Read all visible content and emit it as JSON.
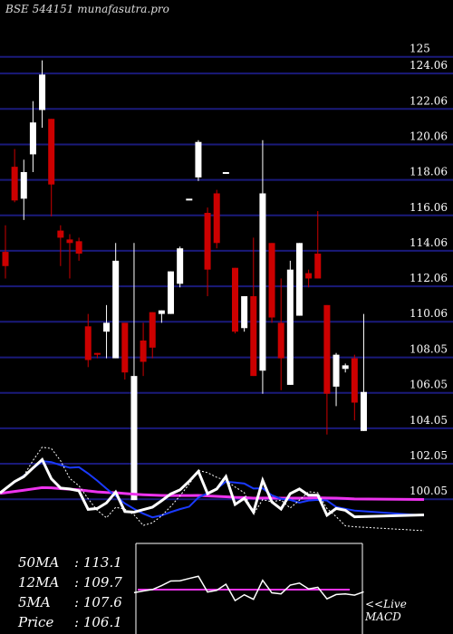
{
  "header": {
    "title": "BSE 544151 munafasutra.pro"
  },
  "stats": [
    {
      "label": "50MA",
      "value": ": 113.1"
    },
    {
      "label": "12MA",
      "value": ": 109.7"
    },
    {
      "label": "5MA",
      "value": ": 107.6"
    },
    {
      "label": "Price",
      "value": ": 106.1"
    }
  ],
  "macd": {
    "line1": "<<Live",
    "line2": "MACD"
  },
  "colors": {
    "bullish": "#ffffff",
    "bearish": "#cc0000",
    "gridline": "#1a1a7a",
    "ma_short": "#ffffff",
    "ma_mid": "#1a3aff",
    "ma_long": "#ee33ee",
    "macd_signal": "#ee33ee"
  },
  "chart_data": {
    "type": "candlestick",
    "y_tick_labels": [
      "125",
      "124.06",
      "122.06",
      "120.06",
      "118.06",
      "116.06",
      "114.06",
      "112.06",
      "110.06",
      "108.05",
      "106.05",
      "104.05",
      "102.05",
      "100.05"
    ],
    "ylim": [
      99.6,
      125.6
    ],
    "candles": [
      {
        "o": 114.0,
        "h": 115.5,
        "l": 112.5,
        "c": 113.2
      },
      {
        "o": 118.8,
        "h": 119.8,
        "l": 116.8,
        "c": 116.9
      },
      {
        "o": 117.0,
        "h": 119.2,
        "l": 115.8,
        "c": 118.5
      },
      {
        "o": 119.5,
        "h": 122.5,
        "l": 118.5,
        "c": 121.3
      },
      {
        "o": 122.0,
        "h": 124.8,
        "l": 121.0,
        "c": 124.0
      },
      {
        "o": 121.5,
        "h": 121.5,
        "l": 116.0,
        "c": 117.8
      },
      {
        "o": 115.2,
        "h": 115.5,
        "l": 113.2,
        "c": 114.8
      },
      {
        "o": 114.7,
        "h": 115.0,
        "l": 112.5,
        "c": 114.5
      },
      {
        "o": 114.6,
        "h": 114.8,
        "l": 113.5,
        "c": 113.9
      },
      {
        "o": 109.8,
        "h": 110.5,
        "l": 107.5,
        "c": 107.9
      },
      {
        "o": 108.3,
        "h": 108.3,
        "l": 108.0,
        "c": 108.2
      },
      {
        "o": 109.5,
        "h": 111.0,
        "l": 108.0,
        "c": 110.0
      },
      {
        "o": 108.0,
        "h": 114.5,
        "l": 108.0,
        "c": 113.5
      },
      {
        "o": 110.0,
        "h": 110.0,
        "l": 106.8,
        "c": 107.2
      },
      {
        "o": 100.0,
        "h": 114.5,
        "l": 100.0,
        "c": 107.0
      },
      {
        "o": 109.0,
        "h": 110.0,
        "l": 107.0,
        "c": 107.8
      },
      {
        "o": 110.6,
        "h": 110.6,
        "l": 108.0,
        "c": 108.6
      },
      {
        "o": 110.5,
        "h": 110.7,
        "l": 110.0,
        "c": 110.7
      },
      {
        "o": 110.5,
        "h": 112.9,
        "l": 110.5,
        "c": 112.9
      },
      {
        "o": 112.2,
        "h": 114.3,
        "l": 112.0,
        "c": 114.2
      },
      {
        "o": 117.0,
        "h": 117.0,
        "l": 117.0,
        "c": 117.0
      },
      {
        "o": 118.2,
        "h": 120.3,
        "l": 118.0,
        "c": 120.2
      },
      {
        "o": 116.2,
        "h": 116.5,
        "l": 111.5,
        "c": 113.0
      },
      {
        "o": 117.3,
        "h": 117.5,
        "l": 114.2,
        "c": 114.5
      },
      {
        "o": 118.5,
        "h": 118.5,
        "l": 118.5,
        "c": 118.5
      },
      {
        "o": 113.1,
        "h": 113.1,
        "l": 109.4,
        "c": 109.5
      },
      {
        "o": 109.7,
        "h": 111.5,
        "l": 109.5,
        "c": 111.5
      },
      {
        "o": 111.5,
        "h": 114.8,
        "l": 107.0,
        "c": 107.0
      },
      {
        "o": 107.3,
        "h": 120.3,
        "l": 106.0,
        "c": 117.3
      },
      {
        "o": 114.5,
        "h": 114.5,
        "l": 110.0,
        "c": 110.3
      },
      {
        "o": 110.0,
        "h": 112.5,
        "l": 106.2,
        "c": 108.0
      },
      {
        "o": 106.5,
        "h": 113.5,
        "l": 106.5,
        "c": 113.0
      },
      {
        "o": 110.4,
        "h": 114.5,
        "l": 110.4,
        "c": 114.5
      },
      {
        "o": 112.8,
        "h": 113.0,
        "l": 112.0,
        "c": 112.5
      },
      {
        "o": 113.9,
        "h": 116.3,
        "l": 112.5,
        "c": 112.5
      },
      {
        "o": 111.0,
        "h": 111.0,
        "l": 103.7,
        "c": 106.0
      },
      {
        "o": 106.4,
        "h": 108.3,
        "l": 105.3,
        "c": 108.2
      },
      {
        "o": 107.4,
        "h": 107.7,
        "l": 107.2,
        "c": 107.6
      },
      {
        "o": 108.0,
        "h": 108.2,
        "l": 104.5,
        "c": 105.5
      },
      {
        "o": 103.9,
        "h": 110.5,
        "l": 103.9,
        "c": 106.1
      }
    ]
  }
}
